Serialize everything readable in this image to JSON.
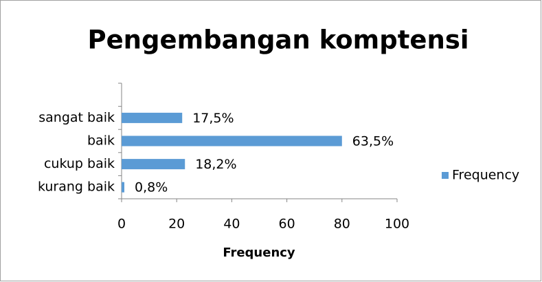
{
  "chart_data": {
    "type": "bar",
    "orientation": "horizontal",
    "title": "Pengembangan komptensi",
    "x_label": "Frequency",
    "categories": [
      "kurang baik",
      "cukup baik",
      "baik",
      "sangat baik",
      null
    ],
    "series": [
      {
        "name": "Frequency",
        "color": "#5b9bd5",
        "values": [
          1,
          23,
          80,
          22,
          null
        ],
        "value_labels": [
          "0,8%",
          "18,2%",
          "63,5%",
          "17,5%",
          null
        ]
      }
    ],
    "xlim": [
      0,
      100
    ],
    "xticks": [
      0,
      20,
      40,
      60,
      80,
      100
    ],
    "grid": false,
    "legend": "right"
  }
}
